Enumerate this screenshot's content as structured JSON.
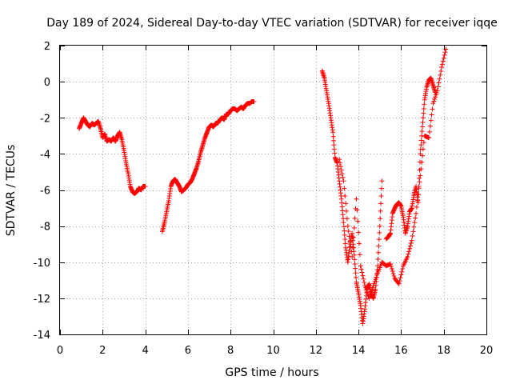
{
  "chart_data": {
    "type": "scatter",
    "title": "Day 189 of 2024, Sidereal Day-to-day VTEC variation (SDTVAR) for receiver iqqe",
    "xlabel": "GPS time / hours",
    "ylabel": "SDTVAR / TECUs",
    "xlim": [
      0,
      20
    ],
    "ylim": [
      -14,
      2
    ],
    "xticks": [
      "0",
      "2",
      "4",
      "6",
      "8",
      "10",
      "12",
      "14",
      "16",
      "18",
      "20"
    ],
    "yticks": [
      "2",
      "0",
      "-2",
      "-4",
      "-6",
      "-8",
      "-10",
      "-12",
      "-14"
    ],
    "grid": true,
    "marker": "plus",
    "color": "#ff0000",
    "series": [
      {
        "name": "segment-1",
        "x": [
          0.9,
          1.0,
          1.1,
          1.2,
          1.3,
          1.4,
          1.5,
          1.6,
          1.7,
          1.8,
          1.9,
          2.0,
          2.1,
          2.2,
          2.3,
          2.4,
          2.5,
          2.6,
          2.7,
          2.8,
          2.9,
          3.0,
          3.1,
          3.2,
          3.3,
          3.4,
          3.5,
          3.6,
          3.7,
          3.8,
          3.9,
          4.0
        ],
        "y": [
          -2.6,
          -2.3,
          -2.0,
          -2.2,
          -2.4,
          -2.5,
          -2.3,
          -2.4,
          -2.3,
          -2.2,
          -2.6,
          -3.1,
          -2.9,
          -3.3,
          -3.2,
          -3.3,
          -3.1,
          -3.3,
          -3.0,
          -2.8,
          -3.2,
          -3.8,
          -4.5,
          -5.1,
          -5.8,
          -6.1,
          -6.2,
          -6.1,
          -5.9,
          -6.0,
          -5.8,
          -5.8
        ]
      },
      {
        "name": "segment-2",
        "x": [
          4.8,
          4.9,
          5.0,
          5.1,
          5.2,
          5.3,
          5.4,
          5.5,
          5.6,
          5.7,
          5.8,
          5.9,
          6.0,
          6.1,
          6.2,
          6.3,
          6.4,
          6.5,
          6.6,
          6.7,
          6.8,
          6.9,
          7.0,
          7.1,
          7.2,
          7.3,
          7.4,
          7.5,
          7.6,
          7.7,
          7.8,
          7.9,
          8.0,
          8.1,
          8.2,
          8.3,
          8.4,
          8.5,
          8.6,
          8.7,
          8.8,
          8.9,
          9.0,
          9.1
        ],
        "y": [
          -8.3,
          -7.8,
          -7.2,
          -6.6,
          -5.8,
          -5.5,
          -5.4,
          -5.6,
          -5.8,
          -6.1,
          -6.0,
          -5.9,
          -5.7,
          -5.6,
          -5.4,
          -5.1,
          -4.8,
          -4.4,
          -3.9,
          -3.5,
          -3.1,
          -2.8,
          -2.5,
          -2.4,
          -2.5,
          -2.3,
          -2.3,
          -2.1,
          -2.0,
          -2.1,
          -1.8,
          -1.8,
          -1.6,
          -1.5,
          -1.5,
          -1.6,
          -1.5,
          -1.4,
          -1.5,
          -1.3,
          -1.2,
          -1.2,
          -1.1,
          -1.1
        ]
      },
      {
        "name": "segment-3a",
        "x": [
          12.3,
          12.4,
          12.5,
          12.6,
          12.7,
          12.8,
          12.9,
          13.0,
          13.1,
          13.2,
          13.3,
          13.4,
          13.5,
          13.6,
          13.7,
          13.8,
          13.9,
          14.0,
          14.1,
          14.2,
          14.3,
          14.4,
          14.5,
          14.6,
          14.7,
          14.8,
          14.9,
          15.0,
          15.1
        ],
        "y": [
          0.6,
          0.2,
          -0.5,
          -1.2,
          -2.0,
          -2.8,
          -4.2,
          -4.5,
          -5.5,
          -6.5,
          -7.8,
          -9.2,
          -10.0,
          -9.0,
          -8.4,
          -9.6,
          -11.1,
          -11.7,
          -12.4,
          -13.4,
          -12.6,
          -11.5,
          -11.2,
          -11.8,
          -12.0,
          -11.5,
          -10.2,
          -8.0,
          -5.5
        ]
      },
      {
        "name": "segment-3b",
        "x": [
          13.1,
          13.3,
          13.5,
          13.7,
          13.9,
          14.1,
          14.3,
          14.5,
          14.7,
          14.9,
          15.1,
          15.3,
          15.5,
          15.7,
          15.9,
          16.1,
          16.3,
          16.5,
          16.7,
          16.9,
          17.1,
          17.3,
          17.5,
          17.7,
          17.9,
          18.1
        ],
        "y": [
          -4.3,
          -5.5,
          -8.0,
          -9.7,
          -6.5,
          -10.2,
          -11.3,
          -12.0,
          -11.3,
          -10.6,
          -10.0,
          -10.2,
          -10.1,
          -10.9,
          -11.2,
          -10.2,
          -9.7,
          -8.8,
          -7.3,
          -5.2,
          -3.0,
          -3.1,
          -1.2,
          -0.5,
          0.8,
          1.8
        ]
      },
      {
        "name": "segment-3c",
        "x": [
          15.3,
          15.4,
          15.5,
          15.6,
          15.7,
          15.8,
          15.9,
          16.0,
          16.1,
          16.2,
          16.3,
          16.4,
          16.5,
          16.6,
          16.7,
          16.8,
          16.9,
          17.0,
          17.1,
          17.2,
          17.3,
          17.4,
          17.5,
          17.6
        ],
        "y": [
          -8.7,
          -8.6,
          -8.4,
          -7.3,
          -7.0,
          -6.8,
          -6.7,
          -6.9,
          -7.5,
          -8.4,
          -8.0,
          -7.2,
          -7.0,
          -6.3,
          -5.8,
          -6.7,
          -4.0,
          -2.5,
          -1.0,
          -0.3,
          0.1,
          0.2,
          -0.2,
          -0.6
        ]
      }
    ]
  }
}
